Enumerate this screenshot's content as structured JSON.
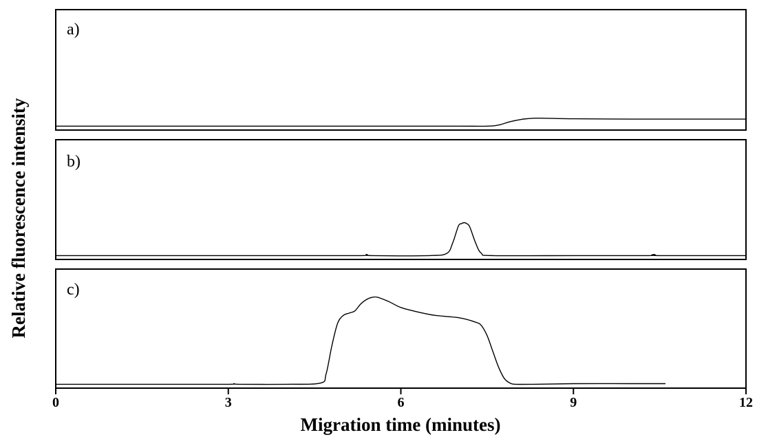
{
  "chart_data": {
    "type": "line",
    "xlabel": "Migration time (minutes)",
    "ylabel": "Relative fluorescence intensity",
    "xlim": [
      0,
      12
    ],
    "xticks": [
      0,
      3,
      6,
      9,
      12
    ],
    "ylim": [
      0,
      1
    ],
    "grid": false,
    "legend": "none",
    "panels": [
      {
        "label": "a)",
        "x": [
          0,
          1,
          2,
          3,
          4,
          5,
          6,
          7,
          7.5,
          7.7,
          7.9,
          8.1,
          8.3,
          8.5,
          9,
          10,
          11,
          12
        ],
        "y": [
          0.01,
          0.01,
          0.01,
          0.01,
          0.01,
          0.01,
          0.01,
          0.01,
          0.01,
          0.02,
          0.05,
          0.07,
          0.08,
          0.08,
          0.075,
          0.072,
          0.072,
          0.072
        ]
      },
      {
        "label": "b)",
        "x": [
          0,
          2,
          4,
          5.3,
          5.4,
          5.5,
          6.5,
          6.8,
          6.9,
          7.0,
          7.05,
          7.1,
          7.15,
          7.2,
          7.3,
          7.4,
          7.6,
          9,
          10.3,
          10.4,
          10.5,
          12
        ],
        "y": [
          0.01,
          0.01,
          0.01,
          0.01,
          0.02,
          0.01,
          0.01,
          0.03,
          0.12,
          0.27,
          0.29,
          0.3,
          0.29,
          0.26,
          0.12,
          0.03,
          0.01,
          0.01,
          0.01,
          0.02,
          0.01,
          0.01
        ]
      },
      {
        "label": "c)",
        "x": [
          0,
          1,
          2,
          3,
          3.1,
          3.2,
          4,
          4.6,
          4.7,
          4.8,
          4.9,
          5.0,
          5.1,
          5.2,
          5.3,
          5.4,
          5.5,
          5.6,
          5.8,
          6.0,
          6.3,
          6.6,
          7.0,
          7.3,
          7.4,
          7.5,
          7.6,
          7.7,
          7.8,
          7.9,
          8.0,
          8.3,
          9,
          10,
          10.6
        ],
        "y": [
          0.01,
          0.01,
          0.01,
          0.01,
          0.015,
          0.01,
          0.01,
          0.02,
          0.1,
          0.35,
          0.55,
          0.62,
          0.64,
          0.66,
          0.72,
          0.76,
          0.78,
          0.78,
          0.74,
          0.69,
          0.65,
          0.62,
          0.6,
          0.56,
          0.53,
          0.44,
          0.3,
          0.16,
          0.06,
          0.02,
          0.01,
          0.01,
          0.015,
          0.015,
          0.015
        ]
      }
    ]
  }
}
